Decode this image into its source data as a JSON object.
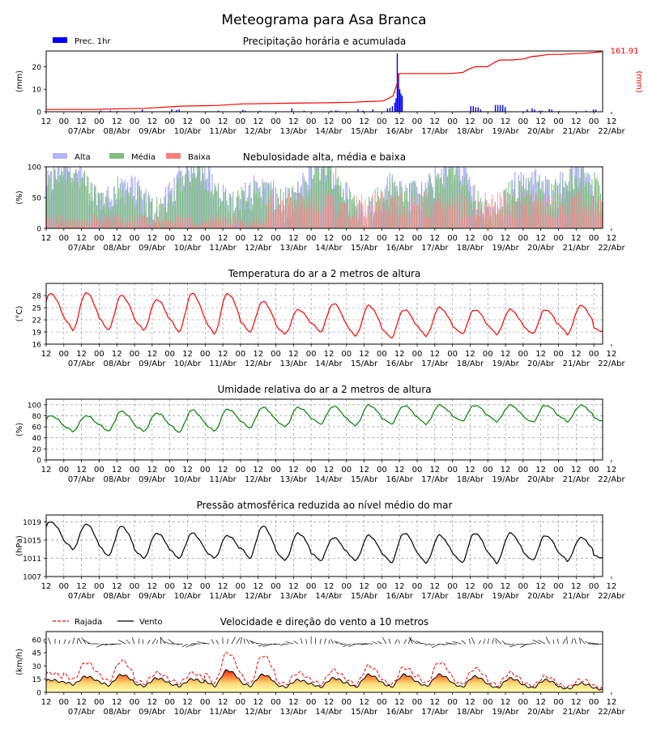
{
  "title": "Meteograma para Asa Branca",
  "x_axis": {
    "hour_ticks": [
      "12",
      "00",
      "12",
      "00",
      "12",
      "00",
      "12",
      "00",
      "12",
      "00",
      "12",
      "00",
      "12",
      "00",
      "12",
      "00",
      "12",
      "00",
      "12",
      "00",
      "12",
      "00",
      "12",
      "00",
      "12",
      "00",
      "12",
      "00",
      "12",
      "00",
      "12",
      "00",
      "12"
    ],
    "date_labels": [
      "07/Abr",
      "08/Abr",
      "09/Abr",
      "10/Abr",
      "11/Abr",
      "12/Abr",
      "13/Abr",
      "14/Abr",
      "15/Abr",
      "16/Abr",
      "17/Abr",
      "18/Abr",
      "19/Abr",
      "20/Abr",
      "21/Abr",
      "22/Abr"
    ],
    "range_hours": [
      0,
      378
    ]
  },
  "chart_data": [
    {
      "type": "bar",
      "title": "Precipitação horária e acumulada",
      "ylabel": "(mm)",
      "ylabel_right": "(mm)",
      "ylim": [
        0,
        27
      ],
      "yticks": [
        0,
        10,
        20
      ],
      "right_annotation": "161.91",
      "legend": [
        {
          "label": "Prec. 1hr",
          "color": "#0000ff"
        }
      ],
      "bars_color": "#0000ff",
      "accum_color": "#ff0000",
      "bars": [
        [
          44,
          0.5
        ],
        [
          52,
          0.5
        ],
        [
          58,
          0.3
        ],
        [
          78,
          1
        ],
        [
          102,
          1.2
        ],
        [
          106,
          0.8
        ],
        [
          108,
          1
        ],
        [
          140,
          0.5
        ],
        [
          160,
          0.5
        ],
        [
          160,
          0.8
        ],
        [
          162,
          0.5
        ],
        [
          174,
          0.4
        ],
        [
          200,
          1.5
        ],
        [
          210,
          0.5
        ],
        [
          232,
          0.5
        ],
        [
          236,
          0.6
        ],
        [
          238,
          0.4
        ],
        [
          254,
          1.2
        ],
        [
          258,
          0.5
        ],
        [
          266,
          1
        ],
        [
          278,
          1.5
        ],
        [
          280,
          1.8
        ],
        [
          282,
          2.5
        ],
        [
          284,
          4
        ],
        [
          285,
          6
        ],
        [
          286,
          26
        ],
        [
          287,
          17
        ],
        [
          288,
          10
        ],
        [
          289,
          8
        ],
        [
          290,
          7
        ],
        [
          346,
          2.5
        ],
        [
          348,
          2.5
        ],
        [
          350,
          2
        ],
        [
          352,
          2
        ],
        [
          354,
          1
        ],
        [
          366,
          3
        ],
        [
          368,
          3
        ],
        [
          370,
          3
        ],
        [
          372,
          3
        ],
        [
          374,
          2
        ],
        [
          392,
          1
        ],
        [
          396,
          1.5
        ],
        [
          398,
          1
        ],
        [
          402,
          0.5
        ],
        [
          404,
          0.5
        ],
        [
          410,
          1.2
        ],
        [
          412,
          1
        ],
        [
          418,
          0.3
        ],
        [
          440,
          0.5
        ],
        [
          446,
          1
        ],
        [
          448,
          1
        ]
      ],
      "accum_points": [
        [
          0,
          1
        ],
        [
          40,
          1
        ],
        [
          50,
          1.2
        ],
        [
          80,
          1.5
        ],
        [
          110,
          2.5
        ],
        [
          140,
          2.8
        ],
        [
          160,
          3.5
        ],
        [
          200,
          3.8
        ],
        [
          230,
          4
        ],
        [
          250,
          4.2
        ],
        [
          260,
          4.5
        ],
        [
          275,
          4.8
        ],
        [
          283,
          7
        ],
        [
          286,
          12
        ],
        [
          288,
          17
        ],
        [
          330,
          17
        ],
        [
          340,
          17.5
        ],
        [
          345,
          19
        ],
        [
          350,
          20
        ],
        [
          360,
          20
        ],
        [
          366,
          22
        ],
        [
          370,
          23
        ],
        [
          380,
          23
        ],
        [
          390,
          23.5
        ],
        [
          396,
          24.5
        ],
        [
          404,
          25
        ],
        [
          410,
          25.5
        ],
        [
          420,
          25.5
        ],
        [
          430,
          25.8
        ],
        [
          440,
          26
        ],
        [
          450,
          26.5
        ],
        [
          454,
          26.7
        ]
      ]
    },
    {
      "type": "bar",
      "title": "Nebulosidade alta, média e baixa",
      "ylabel": "(%)",
      "ylim": [
        0,
        100
      ],
      "yticks": [
        0,
        50,
        100
      ],
      "legend": [
        {
          "label": "Alta",
          "color": "#b2b2ff"
        },
        {
          "label": "Média",
          "color": "#7fbf7f"
        },
        {
          "label": "Baixa",
          "color": "#ff7f7f"
        }
      ]
    },
    {
      "type": "line",
      "title": "Temperatura do ar a 2 metros de altura",
      "ylabel": "(°C)",
      "ylim": [
        16,
        31
      ],
      "yticks": [
        16,
        19,
        22,
        25,
        28
      ],
      "color": "#ff0000",
      "daily": [
        [
          28.5,
          20.5
        ],
        [
          28.7,
          19.5
        ],
        [
          28,
          19.5
        ],
        [
          27,
          19.5
        ],
        [
          28.5,
          19
        ],
        [
          28.5,
          18.5
        ],
        [
          26.5,
          19
        ],
        [
          24.5,
          18.5
        ],
        [
          26,
          19
        ],
        [
          25.5,
          18
        ],
        [
          24.5,
          17.5
        ],
        [
          25,
          18
        ],
        [
          24.5,
          18.5
        ],
        [
          24.5,
          18.5
        ],
        [
          24.5,
          18.5
        ],
        [
          25.5,
          18.5
        ],
        [
          22,
          19
        ]
      ]
    },
    {
      "type": "line",
      "title": "Umidade relativa do ar a 2 metros de altura",
      "ylabel": "(%)",
      "ylim": [
        0,
        110
      ],
      "yticks": [
        0,
        20,
        40,
        60,
        80,
        100
      ],
      "color": "#008000",
      "daily": [
        [
          80,
          48
        ],
        [
          80,
          52
        ],
        [
          88,
          52
        ],
        [
          85,
          52
        ],
        [
          90,
          50
        ],
        [
          92,
          52
        ],
        [
          95,
          58
        ],
        [
          95,
          60
        ],
        [
          97,
          65
        ],
        [
          99,
          62
        ],
        [
          98,
          65
        ],
        [
          99,
          65
        ],
        [
          99,
          70
        ],
        [
          99,
          70
        ],
        [
          99,
          68
        ],
        [
          99,
          70
        ],
        [
          90,
          70
        ]
      ]
    },
    {
      "type": "line",
      "title": "Pressão atmosférica reduzida ao nível médio do mar",
      "ylabel": "(hPa)",
      "ylim": [
        1007,
        1020.5
      ],
      "yticks": [
        1007,
        1011,
        1015,
        1019
      ],
      "color": "#000000",
      "daily": [
        [
          1019,
          1014.5
        ],
        [
          1018.5,
          1013
        ],
        [
          1018,
          1011.5
        ],
        [
          1016.5,
          1011
        ],
        [
          1016.5,
          1011
        ],
        [
          1016,
          1011
        ],
        [
          1018,
          1011
        ],
        [
          1016.5,
          1010.5
        ],
        [
          1015.5,
          1010.5
        ],
        [
          1016,
          1010.5
        ],
        [
          1016.5,
          1010
        ],
        [
          1016,
          1010
        ],
        [
          1016.5,
          1010
        ],
        [
          1016.5,
          1010
        ],
        [
          1016,
          1010.5
        ],
        [
          1015.5,
          1010.5
        ],
        [
          1013,
          1011
        ]
      ]
    },
    {
      "type": "area",
      "title": "Velocidade e direção do vento a 10 metros",
      "ylabel": "(km/h)",
      "ylim": [
        0,
        69
      ],
      "yticks": [
        0,
        15,
        30,
        45,
        60
      ],
      "legend": [
        {
          "label": "Rajada",
          "color": "#ff0000"
        },
        {
          "label": "Vento",
          "color": "#000000"
        }
      ],
      "wind_daily": [
        [
          14,
          10
        ],
        [
          18,
          9
        ],
        [
          20,
          8
        ],
        [
          16,
          7
        ],
        [
          15,
          7
        ],
        [
          25,
          7
        ],
        [
          20,
          7
        ],
        [
          14,
          6
        ],
        [
          16,
          6
        ],
        [
          20,
          6
        ],
        [
          20,
          6
        ],
        [
          20,
          7
        ],
        [
          18,
          6
        ],
        [
          16,
          5
        ],
        [
          14,
          5
        ],
        [
          10,
          4
        ],
        [
          8,
          3
        ]
      ],
      "gust_daily": [
        [
          22,
          15
        ],
        [
          34,
          14
        ],
        [
          36,
          12
        ],
        [
          22,
          10
        ],
        [
          22,
          10
        ],
        [
          45,
          10
        ],
        [
          42,
          9
        ],
        [
          22,
          9
        ],
        [
          25,
          9
        ],
        [
          30,
          8
        ],
        [
          28,
          8
        ],
        [
          34,
          10
        ],
        [
          27,
          9
        ],
        [
          22,
          8
        ],
        [
          18,
          7
        ],
        [
          14,
          6
        ],
        [
          11,
          5
        ]
      ]
    }
  ]
}
